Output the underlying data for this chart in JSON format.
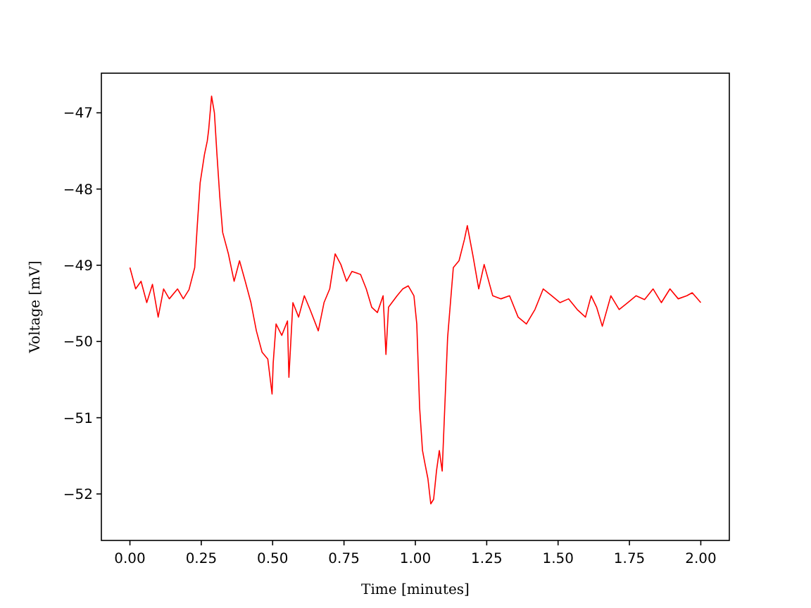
{
  "chart_data": {
    "type": "line",
    "xlabel": "Time [minutes]",
    "ylabel": "Voltage [mV]",
    "xlim": [
      -0.1,
      2.1
    ],
    "ylim": [
      -52.61,
      -46.48
    ],
    "xticks": [
      {
        "value": 0,
        "label": "0.00"
      },
      {
        "value": 0.25,
        "label": "0.25"
      },
      {
        "value": 0.5,
        "label": "0.50"
      },
      {
        "value": 0.75,
        "label": "0.75"
      },
      {
        "value": 1,
        "label": "1.00"
      },
      {
        "value": 1.25,
        "label": "1.25"
      },
      {
        "value": 1.5,
        "label": "1.50"
      },
      {
        "value": 1.75,
        "label": "1.75"
      },
      {
        "value": 2,
        "label": "2.00"
      }
    ],
    "yticks": [
      {
        "value": -52,
        "label": "−52"
      },
      {
        "value": -51,
        "label": "−51"
      },
      {
        "value": -50,
        "label": "−50"
      },
      {
        "value": -49,
        "label": "−49"
      },
      {
        "value": -48,
        "label": "−48"
      },
      {
        "value": -47,
        "label": "−47"
      }
    ],
    "grid": false,
    "marker": "none",
    "line_style": "solid",
    "series": [
      {
        "color": "#ff0000",
        "x": [
          0.0,
          0.02,
          0.039,
          0.059,
          0.079,
          0.099,
          0.118,
          0.138,
          0.167,
          0.187,
          0.207,
          0.227,
          0.236,
          0.246,
          0.261,
          0.271,
          0.276,
          0.286,
          0.296,
          0.305,
          0.315,
          0.325,
          0.345,
          0.365,
          0.384,
          0.404,
          0.424,
          0.443,
          0.463,
          0.483,
          0.498,
          0.502,
          0.512,
          0.532,
          0.552,
          0.557,
          0.571,
          0.591,
          0.611,
          0.631,
          0.66,
          0.68,
          0.7,
          0.719,
          0.739,
          0.759,
          0.778,
          0.808,
          0.828,
          0.847,
          0.867,
          0.887,
          0.897,
          0.906,
          0.936,
          0.956,
          0.975,
          0.995,
          1.005,
          1.015,
          1.025,
          1.034,
          1.044,
          1.054,
          1.064,
          1.074,
          1.084,
          1.094,
          1.103,
          1.113,
          1.123,
          1.133,
          1.153,
          1.172,
          1.182,
          1.202,
          1.222,
          1.241,
          1.271,
          1.3,
          1.33,
          1.36,
          1.389,
          1.419,
          1.448,
          1.478,
          1.507,
          1.537,
          1.567,
          1.596,
          1.616,
          1.635,
          1.655,
          1.685,
          1.714,
          1.744,
          1.773,
          1.803,
          1.833,
          1.862,
          1.892,
          1.921,
          1.951,
          1.97,
          2.0
        ],
        "values": [
          -49.03,
          -49.31,
          -49.21,
          -49.49,
          -49.25,
          -49.68,
          -49.31,
          -49.44,
          -49.31,
          -49.44,
          -49.32,
          -49.03,
          -48.48,
          -47.92,
          -47.55,
          -47.37,
          -47.22,
          -46.78,
          -47.0,
          -47.55,
          -48.11,
          -48.57,
          -48.85,
          -49.21,
          -48.94,
          -49.21,
          -49.49,
          -49.86,
          -50.14,
          -50.23,
          -50.69,
          -50.28,
          -49.77,
          -49.92,
          -49.73,
          -50.47,
          -49.49,
          -49.68,
          -49.4,
          -49.58,
          -49.86,
          -49.49,
          -49.31,
          -48.85,
          -48.99,
          -49.21,
          -49.08,
          -49.12,
          -49.31,
          -49.55,
          -49.62,
          -49.4,
          -50.17,
          -49.55,
          -49.4,
          -49.31,
          -49.27,
          -49.4,
          -49.77,
          -50.87,
          -51.43,
          -51.61,
          -51.8,
          -52.13,
          -52.07,
          -51.7,
          -51.43,
          -51.7,
          -50.87,
          -49.95,
          -49.49,
          -49.03,
          -48.94,
          -48.66,
          -48.48,
          -48.88,
          -49.31,
          -48.99,
          -49.4,
          -49.44,
          -49.4,
          -49.68,
          -49.77,
          -49.58,
          -49.31,
          -49.4,
          -49.49,
          -49.44,
          -49.58,
          -49.68,
          -49.4,
          -49.55,
          -49.8,
          -49.4,
          -49.58,
          -49.49,
          -49.4,
          -49.45,
          -49.31,
          -49.49,
          -49.31,
          -49.44,
          -49.4,
          -49.36,
          -49.49
        ]
      }
    ]
  }
}
